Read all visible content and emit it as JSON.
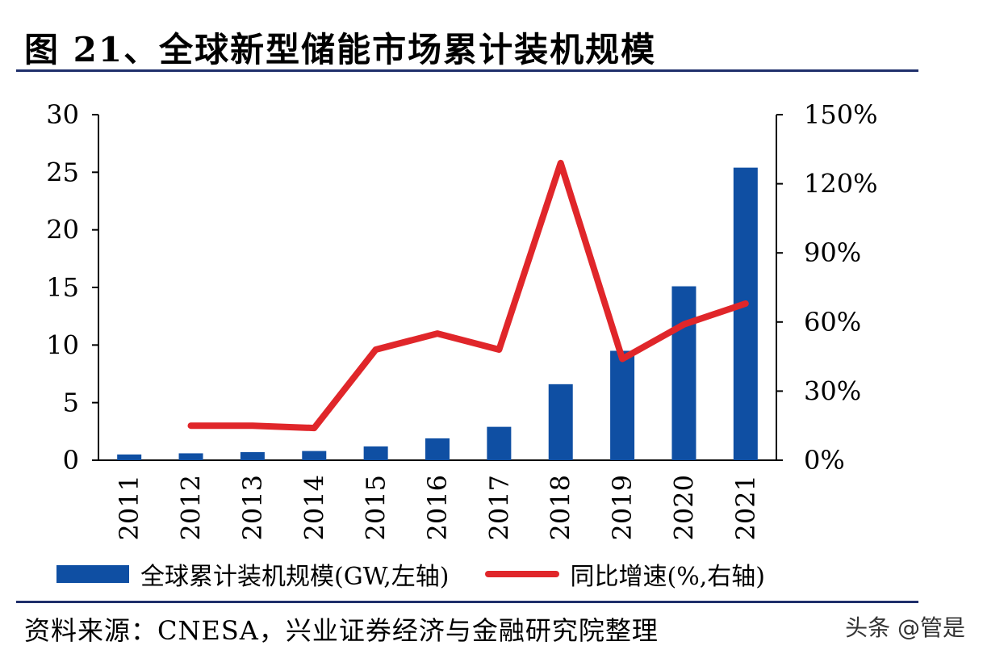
{
  "title": "图 21、全球新型储能市场累计装机规模",
  "source": "资料来源：CNESA，兴业证券经济与金融研究院整理",
  "watermark": "头条 @管是",
  "colors": {
    "bar": "#0f4fa3",
    "line": "#e0262a",
    "rule": "#1f2f6b"
  },
  "chart_data": {
    "type": "bar+line",
    "categories": [
      "2011",
      "2012",
      "2013",
      "2014",
      "2015",
      "2016",
      "2017",
      "2018",
      "2019",
      "2020",
      "2021"
    ],
    "series": [
      {
        "name": "全球累计装机规模(GW,左轴",
        "axis": "left",
        "type": "bar",
        "values": [
          0.5,
          0.6,
          0.7,
          0.8,
          1.2,
          1.9,
          2.9,
          6.6,
          9.5,
          15.1,
          25.4
        ]
      },
      {
        "name": "同比增速(%,右轴",
        "axis": "right",
        "type": "line",
        "values": [
          null,
          15,
          15,
          14,
          48,
          55,
          48,
          129,
          44,
          59,
          68
        ]
      }
    ],
    "left_axis": {
      "min": 0,
      "max": 30,
      "ticks": [
        "0",
        "5",
        "10",
        "15",
        "20",
        "25",
        "30"
      ]
    },
    "right_axis": {
      "min": 0,
      "max": 150,
      "ticks": [
        "0%",
        "30%",
        "60%",
        "90%",
        "120%",
        "150%"
      ]
    },
    "legend": [
      {
        "label": "全球累计装机规模(GW,左轴)"
      },
      {
        "label": "同比增速(%,右轴)"
      }
    ]
  }
}
